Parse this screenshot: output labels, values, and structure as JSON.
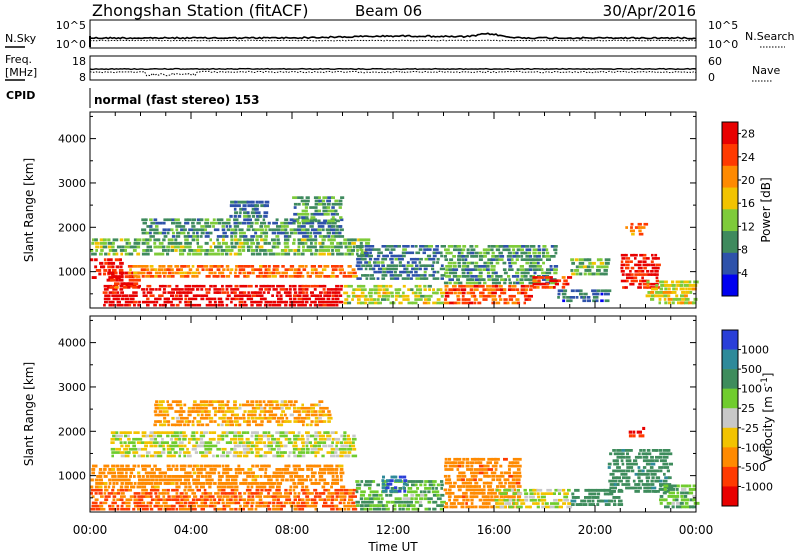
{
  "header": {
    "station": "Zhongshan Station (fitACF)",
    "beam": "Beam 06",
    "date": "30/Apr/2016"
  },
  "sky_panel": {
    "left_label": "N.Sky",
    "right_label": "N.Search",
    "ticks": [
      "10^5",
      "10^0"
    ],
    "right_ticks": [
      "10^5",
      "10^0"
    ]
  },
  "freq_panel": {
    "left_label_1": "Freq.",
    "left_label_2": "[MHz]",
    "ticks": [
      "18",
      "8"
    ],
    "right_label": "Nave",
    "right_ticks": [
      "60",
      "0"
    ]
  },
  "cpid_panel": {
    "label": "CPID",
    "text": "normal (fast stereo) 153"
  },
  "time_axis": {
    "label": "Time UT",
    "ticks": [
      "00:00",
      "04:00",
      "08:00",
      "12:00",
      "16:00",
      "20:00",
      "00:00"
    ]
  },
  "chart_data": [
    {
      "type": "heatmap",
      "name": "power",
      "ylabel": "Slant Range [km]",
      "ylim": [
        180,
        4600
      ],
      "yticks": [
        "1000",
        "2000",
        "3000",
        "4000"
      ],
      "xlim_hours": [
        0,
        24
      ],
      "colorbar": {
        "label": "Power [dB]",
        "ticks": [
          "4",
          "8",
          "12",
          "16",
          "20",
          "24",
          "28"
        ],
        "range": [
          0,
          30
        ],
        "colors": [
          "#0000f0",
          "#2e52aa",
          "#3f8a5e",
          "#7ecb3a",
          "#f2c300",
          "#ff8a00",
          "#ff3a00",
          "#e80000"
        ]
      },
      "bands": [
        {
          "t0": 0.0,
          "t1": 1.3,
          "r0": 820,
          "r1": 1300,
          "value": 28
        },
        {
          "t0": 0.5,
          "t1": 10.0,
          "r0": 200,
          "r1": 700,
          "value": 29
        },
        {
          "t0": 0.6,
          "t1": 2.0,
          "r0": 600,
          "r1": 1000,
          "value": 26
        },
        {
          "t0": 1.5,
          "t1": 10.5,
          "r0": 850,
          "r1": 1150,
          "value": 22
        },
        {
          "t0": 0.0,
          "t1": 11.0,
          "r0": 1350,
          "r1": 1750,
          "value": 12
        },
        {
          "t0": 2.0,
          "t1": 10.0,
          "r0": 1750,
          "r1": 2200,
          "value": 9
        },
        {
          "t0": 10.0,
          "t1": 14.0,
          "r0": 250,
          "r1": 700,
          "value": 15
        },
        {
          "t0": 10.5,
          "t1": 14.0,
          "r0": 800,
          "r1": 1600,
          "value": 8
        },
        {
          "t0": 14.0,
          "t1": 17.5,
          "r0": 250,
          "r1": 700,
          "value": 24
        },
        {
          "t0": 14.0,
          "t1": 18.5,
          "r0": 700,
          "r1": 1600,
          "value": 10
        },
        {
          "t0": 17.5,
          "t1": 19.0,
          "r0": 600,
          "r1": 900,
          "value": 26
        },
        {
          "t0": 18.5,
          "t1": 20.5,
          "r0": 300,
          "r1": 600,
          "value": 7
        },
        {
          "t0": 19.0,
          "t1": 20.5,
          "r0": 900,
          "r1": 1300,
          "value": 12
        },
        {
          "t0": 21.0,
          "t1": 22.5,
          "r0": 600,
          "r1": 1400,
          "value": 27
        },
        {
          "t0": 21.2,
          "t1": 22.0,
          "r0": 1800,
          "r1": 2100,
          "value": 22
        },
        {
          "t0": 22.0,
          "t1": 24.0,
          "r0": 250,
          "r1": 800,
          "value": 16
        },
        {
          "t0": 5.5,
          "t1": 7.0,
          "r0": 2200,
          "r1": 2600,
          "value": 8
        },
        {
          "t0": 8.0,
          "t1": 10.0,
          "r0": 2100,
          "r1": 2700,
          "value": 10
        }
      ]
    },
    {
      "type": "heatmap",
      "name": "velocity",
      "ylabel": "Slant Range [km]",
      "ylim": [
        180,
        4600
      ],
      "yticks": [
        "1000",
        "2000",
        "3000",
        "4000"
      ],
      "xlim_hours": [
        0,
        24
      ],
      "colorbar": {
        "label": "Velocity [m s^-1]",
        "ticks": [
          "1000",
          "500",
          "100",
          "25",
          "-25",
          "-100",
          "-500",
          "-1000"
        ],
        "colors": [
          "#2a3fd8",
          "#2e8a9a",
          "#3e8c5c",
          "#70cc2e",
          "#c8c8c8",
          "#f2c300",
          "#ff8a00",
          "#ff3a00",
          "#e80000"
        ]
      },
      "bands": [
        {
          "t0": 0.0,
          "t1": 10.5,
          "r0": 200,
          "r1": 700,
          "value": -300
        },
        {
          "t0": 0.0,
          "t1": 10.0,
          "r0": 700,
          "r1": 1250,
          "value": -150
        },
        {
          "t0": 0.8,
          "t1": 10.5,
          "r0": 1400,
          "r1": 2000,
          "value": 0
        },
        {
          "t0": 2.5,
          "t1": 9.5,
          "r0": 2100,
          "r1": 2700,
          "value": -70
        },
        {
          "t0": 10.5,
          "t1": 14.0,
          "r0": 200,
          "r1": 900,
          "value": 60
        },
        {
          "t0": 14.0,
          "t1": 17.0,
          "r0": 250,
          "r1": 1400,
          "value": -200
        },
        {
          "t0": 16.0,
          "t1": 19.0,
          "r0": 250,
          "r1": 700,
          "value": 10
        },
        {
          "t0": 19.0,
          "t1": 21.0,
          "r0": 300,
          "r1": 700,
          "value": 200
        },
        {
          "t0": 20.5,
          "t1": 23.0,
          "r0": 600,
          "r1": 1600,
          "value": 200
        },
        {
          "t0": 21.3,
          "t1": 22.0,
          "r0": 1850,
          "r1": 2100,
          "value": -700
        },
        {
          "t0": 22.5,
          "t1": 24.0,
          "r0": 250,
          "r1": 800,
          "value": 50
        },
        {
          "t0": 11.5,
          "t1": 12.5,
          "r0": 600,
          "r1": 1000,
          "value": 700
        }
      ]
    }
  ]
}
